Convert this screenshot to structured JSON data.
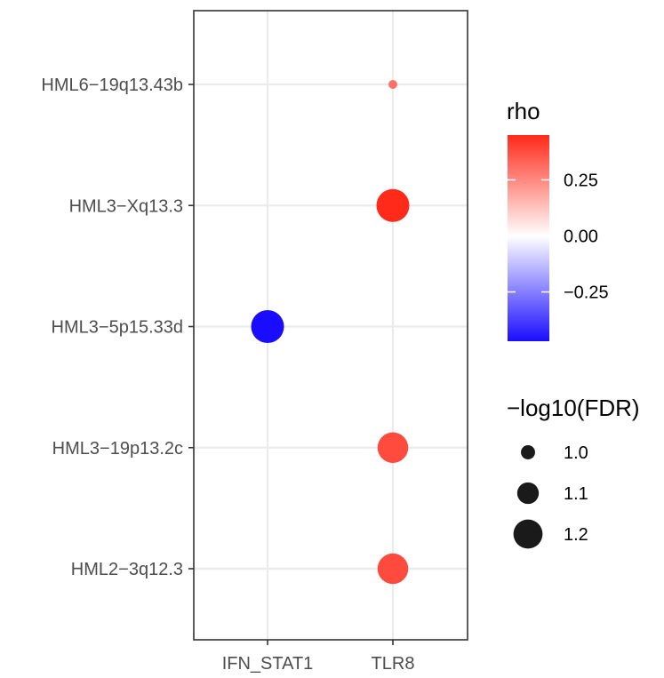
{
  "chart_data": {
    "type": "scatter",
    "title": "",
    "xlabel": "",
    "ylabel": "",
    "categories_x": [
      "IFN_STAT1",
      "TLR8"
    ],
    "categories_y": [
      "HML6−19q13.43b",
      "HML3−Xq13.3",
      "HML3−5p15.33d",
      "HML3−19p13.2c",
      "HML2−3q12.3"
    ],
    "points": [
      {
        "x": "TLR8",
        "y": "HML6−19q13.43b",
        "rho": 0.3,
        "neg_log10_fdr": 0.93
      },
      {
        "x": "TLR8",
        "y": "HML3−Xq13.3",
        "rho": 0.45,
        "neg_log10_fdr": 1.25
      },
      {
        "x": "IFN_STAT1",
        "y": "HML3−5p15.33d",
        "rho": -0.47,
        "neg_log10_fdr": 1.25
      },
      {
        "x": "TLR8",
        "y": "HML3−19p13.2c",
        "rho": 0.38,
        "neg_log10_fdr": 1.22
      },
      {
        "x": "TLR8",
        "y": "HML2−3q12.3",
        "rho": 0.38,
        "neg_log10_fdr": 1.22
      }
    ],
    "color_legend": {
      "title": "rho",
      "ticks": [
        {
          "value": 0.25,
          "label": "0.25"
        },
        {
          "value": 0.0,
          "label": "0.00"
        },
        {
          "value": -0.25,
          "label": "−0.25"
        }
      ],
      "range": [
        -0.47,
        0.45
      ],
      "low_color": "#1a0dff",
      "mid_color": "#ffffff",
      "high_color": "#ff2a1a"
    },
    "size_legend": {
      "title": "−log10(FDR)",
      "entries": [
        {
          "value": 1.0,
          "label": "1.0"
        },
        {
          "value": 1.1,
          "label": "1.1"
        },
        {
          "value": 1.2,
          "label": "1.2"
        }
      ],
      "color": "#1a1a1a"
    },
    "grid": true,
    "legend_position": "right"
  }
}
